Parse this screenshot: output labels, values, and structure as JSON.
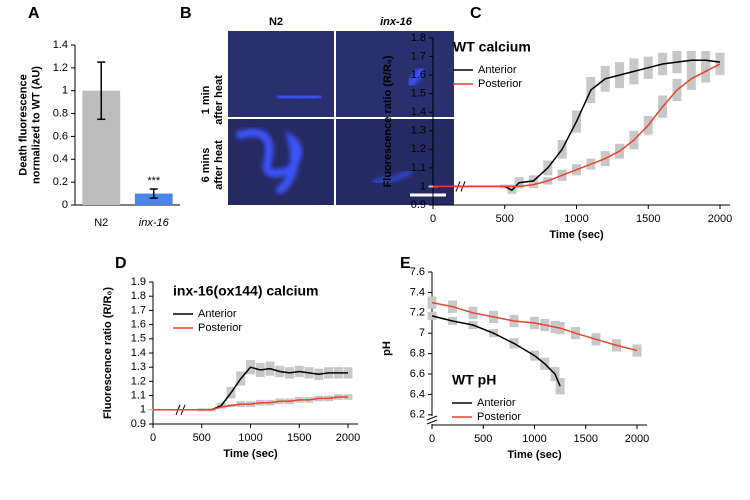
{
  "chart_data": [
    {
      "type": "bar",
      "label": "A",
      "ylabel": [
        "Death fluorescence",
        "normalized to WT (AU)"
      ],
      "categories": [
        "N2",
        "inx-16"
      ],
      "values": [
        1,
        0.1
      ],
      "errors": [
        0.25,
        0.04
      ],
      "colors": [
        "#bdbdbd",
        "#4a86e8"
      ],
      "annotation": "***",
      "ylim": [
        0,
        1.4
      ],
      "yticks": [
        0,
        0.2,
        0.4,
        0.6,
        0.8,
        1,
        1.2,
        1.4
      ]
    },
    {
      "type": "line",
      "label": "C",
      "title": "WT calcium",
      "legend": "upper left",
      "xlabel": "Time (sec)",
      "ylabel": [
        "Fluorescence ratio (R/R₀)"
      ],
      "x": [
        0,
        200,
        500,
        550,
        600,
        700,
        800,
        900,
        1000,
        1100,
        1200,
        1300,
        1400,
        1500,
        1600,
        1700,
        1800,
        1900,
        2000
      ],
      "series": [
        {
          "name": "Anterior",
          "color": "#000000",
          "values": [
            1,
            1,
            1,
            0.98,
            1.02,
            1.03,
            1.1,
            1.2,
            1.35,
            1.52,
            1.58,
            1.6,
            1.62,
            1.64,
            1.66,
            1.67,
            1.68,
            1.68,
            1.67
          ],
          "errors": [
            0.005,
            0.005,
            0.01,
            0.02,
            0.03,
            0.03,
            0.04,
            0.05,
            0.06,
            0.07,
            0.07,
            0.07,
            0.07,
            0.06,
            0.06,
            0.06,
            0.05,
            0.05,
            0.05
          ]
        },
        {
          "name": "Posterior",
          "color": "#e8442c",
          "values": [
            1,
            1,
            1,
            1,
            1,
            1.01,
            1.03,
            1.06,
            1.09,
            1.12,
            1.15,
            1.19,
            1.25,
            1.33,
            1.43,
            1.52,
            1.58,
            1.62,
            1.66
          ],
          "errors": [
            0.005,
            0.005,
            0.01,
            0.01,
            0.01,
            0.02,
            0.02,
            0.03,
            0.03,
            0.03,
            0.04,
            0.04,
            0.05,
            0.05,
            0.06,
            0.06,
            0.06,
            0.06,
            0.06
          ]
        }
      ],
      "xlim": [
        0,
        2000
      ],
      "xticks": [
        0,
        500,
        1000,
        1500,
        2000
      ],
      "ylim": [
        0.9,
        1.8
      ],
      "yticks": [
        0.9,
        1,
        1.1,
        1.2,
        1.3,
        1.4,
        1.5,
        1.6,
        1.7,
        1.8
      ]
    },
    {
      "type": "line",
      "label": "D",
      "title": "inx-16(ox144) calcium",
      "legend": "upper left",
      "xlabel": "Time (sec)",
      "ylabel": [
        "Fluorescence ratio (R/R₀)"
      ],
      "x": [
        0,
        200,
        500,
        600,
        700,
        800,
        900,
        1000,
        1100,
        1200,
        1300,
        1400,
        1500,
        1600,
        1700,
        1800,
        1900,
        2000
      ],
      "series": [
        {
          "name": "Anterior",
          "color": "#000000",
          "values": [
            1,
            1,
            1,
            1,
            1.03,
            1.12,
            1.22,
            1.3,
            1.28,
            1.29,
            1.27,
            1.26,
            1.27,
            1.26,
            1.25,
            1.26,
            1.26,
            1.26
          ],
          "errors": [
            0.005,
            0.005,
            0.01,
            0.01,
            0.02,
            0.04,
            0.05,
            0.05,
            0.05,
            0.05,
            0.04,
            0.04,
            0.04,
            0.04,
            0.04,
            0.04,
            0.04,
            0.04
          ]
        },
        {
          "name": "Posterior",
          "color": "#e8442c",
          "values": [
            1,
            1,
            1,
            1,
            1.02,
            1.03,
            1.04,
            1.04,
            1.05,
            1.05,
            1.06,
            1.06,
            1.07,
            1.07,
            1.08,
            1.08,
            1.09,
            1.09
          ],
          "errors": [
            0.005,
            0.005,
            0.01,
            0.01,
            0.01,
            0.01,
            0.02,
            0.02,
            0.02,
            0.02,
            0.02,
            0.02,
            0.02,
            0.02,
            0.02,
            0.02,
            0.02,
            0.02
          ]
        }
      ],
      "xlim": [
        0,
        2000
      ],
      "xticks": [
        0,
        500,
        1000,
        1500,
        2000
      ],
      "ylim": [
        0.9,
        1.9
      ],
      "yticks": [
        0.9,
        1,
        1.1,
        1.2,
        1.3,
        1.4,
        1.5,
        1.6,
        1.7,
        1.8,
        1.9
      ]
    },
    {
      "type": "line",
      "label": "E",
      "title": "WT pH",
      "legend": "lower left",
      "xlabel": "Time (sec)",
      "ylabel": [
        "pH"
      ],
      "x": [
        0,
        200,
        400,
        600,
        800,
        1000,
        1100,
        1200,
        1250,
        1400,
        1600,
        1800,
        2000
      ],
      "series": [
        {
          "name": "Anterior",
          "color": "#000000",
          "values": [
            7.17,
            7.12,
            7.08,
            7.0,
            6.9,
            6.78,
            6.7,
            6.6,
            6.48,
            null,
            null,
            null,
            null
          ],
          "errors": [
            0.04,
            0.04,
            0.04,
            0.04,
            0.05,
            0.05,
            0.06,
            0.07,
            0.08,
            null,
            null,
            null,
            null
          ]
        },
        {
          "name": "Posterior",
          "color": "#e8442c",
          "values": [
            7.3,
            7.26,
            7.2,
            7.16,
            7.12,
            7.1,
            7.08,
            7.06,
            7.05,
            7.0,
            6.94,
            6.88,
            6.83
          ],
          "errors": [
            0.06,
            0.06,
            0.06,
            0.06,
            0.06,
            0.06,
            0.06,
            0.06,
            0.06,
            0.06,
            0.06,
            0.06,
            0.06
          ]
        }
      ],
      "xlim": [
        0,
        2000
      ],
      "xticks": [
        0,
        500,
        1000,
        1500,
        2000
      ],
      "ylim": [
        6.1,
        7.6
      ],
      "yticks": [
        6.2,
        6.4,
        6.6,
        6.8,
        7,
        7.2,
        7.4,
        7.6
      ]
    }
  ],
  "panel_b": {
    "label": "B",
    "columns": [
      "N2",
      "inx-16"
    ],
    "rows": [
      [
        "1 min",
        "after heat"
      ],
      [
        "6 mins",
        "after heat"
      ]
    ]
  }
}
